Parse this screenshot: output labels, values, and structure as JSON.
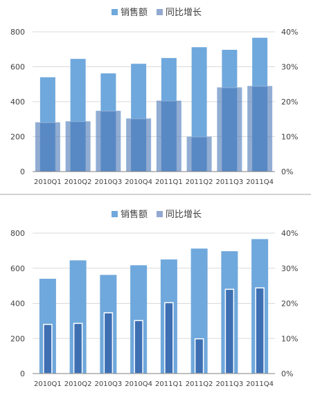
{
  "chart_data": [
    {
      "type": "bar",
      "style": "overlap",
      "categories": [
        "2010Q1",
        "2010Q2",
        "2010Q3",
        "2010Q4",
        "2011Q1",
        "2011Q2",
        "2011Q3",
        "2011Q4"
      ],
      "series": [
        {
          "name": "销售额",
          "axis": "left",
          "values": [
            540,
            645,
            562,
            617,
            650,
            712,
            697,
            766
          ],
          "color": "#6fa8dc"
        },
        {
          "name": "同比增长",
          "axis": "right",
          "values": [
            0.14,
            0.143,
            0.173,
            0.151,
            0.202,
            0.099,
            0.24,
            0.244
          ],
          "color": "#4a74b4"
        }
      ],
      "ylim": [
        0,
        800
      ],
      "yticks": [
        "0",
        "200",
        "400",
        "600",
        "800"
      ],
      "y2lim": [
        0,
        0.4
      ],
      "y2ticks": [
        "0%",
        "10%",
        "20%",
        "30%",
        "40%"
      ],
      "legend": "top-center",
      "grid": true
    },
    {
      "type": "bar",
      "style": "nested",
      "categories": [
        "2010Q1",
        "2010Q2",
        "2010Q3",
        "2010Q4",
        "2011Q1",
        "2011Q2",
        "2011Q3",
        "2011Q4"
      ],
      "series": [
        {
          "name": "销售额",
          "axis": "left",
          "values": [
            540,
            645,
            562,
            617,
            650,
            712,
            697,
            766
          ],
          "color": "#6fa8dc"
        },
        {
          "name": "同比增长",
          "axis": "right",
          "values": [
            0.14,
            0.143,
            0.173,
            0.151,
            0.202,
            0.099,
            0.24,
            0.244
          ],
          "color": "#4a74b4"
        }
      ],
      "ylim": [
        0,
        800
      ],
      "yticks": [
        "0",
        "200",
        "400",
        "600",
        "800"
      ],
      "y2lim": [
        0,
        0.4
      ],
      "y2ticks": [
        "0%",
        "10%",
        "20%",
        "30%",
        "40%"
      ],
      "legend": "top-center",
      "grid": true
    }
  ]
}
